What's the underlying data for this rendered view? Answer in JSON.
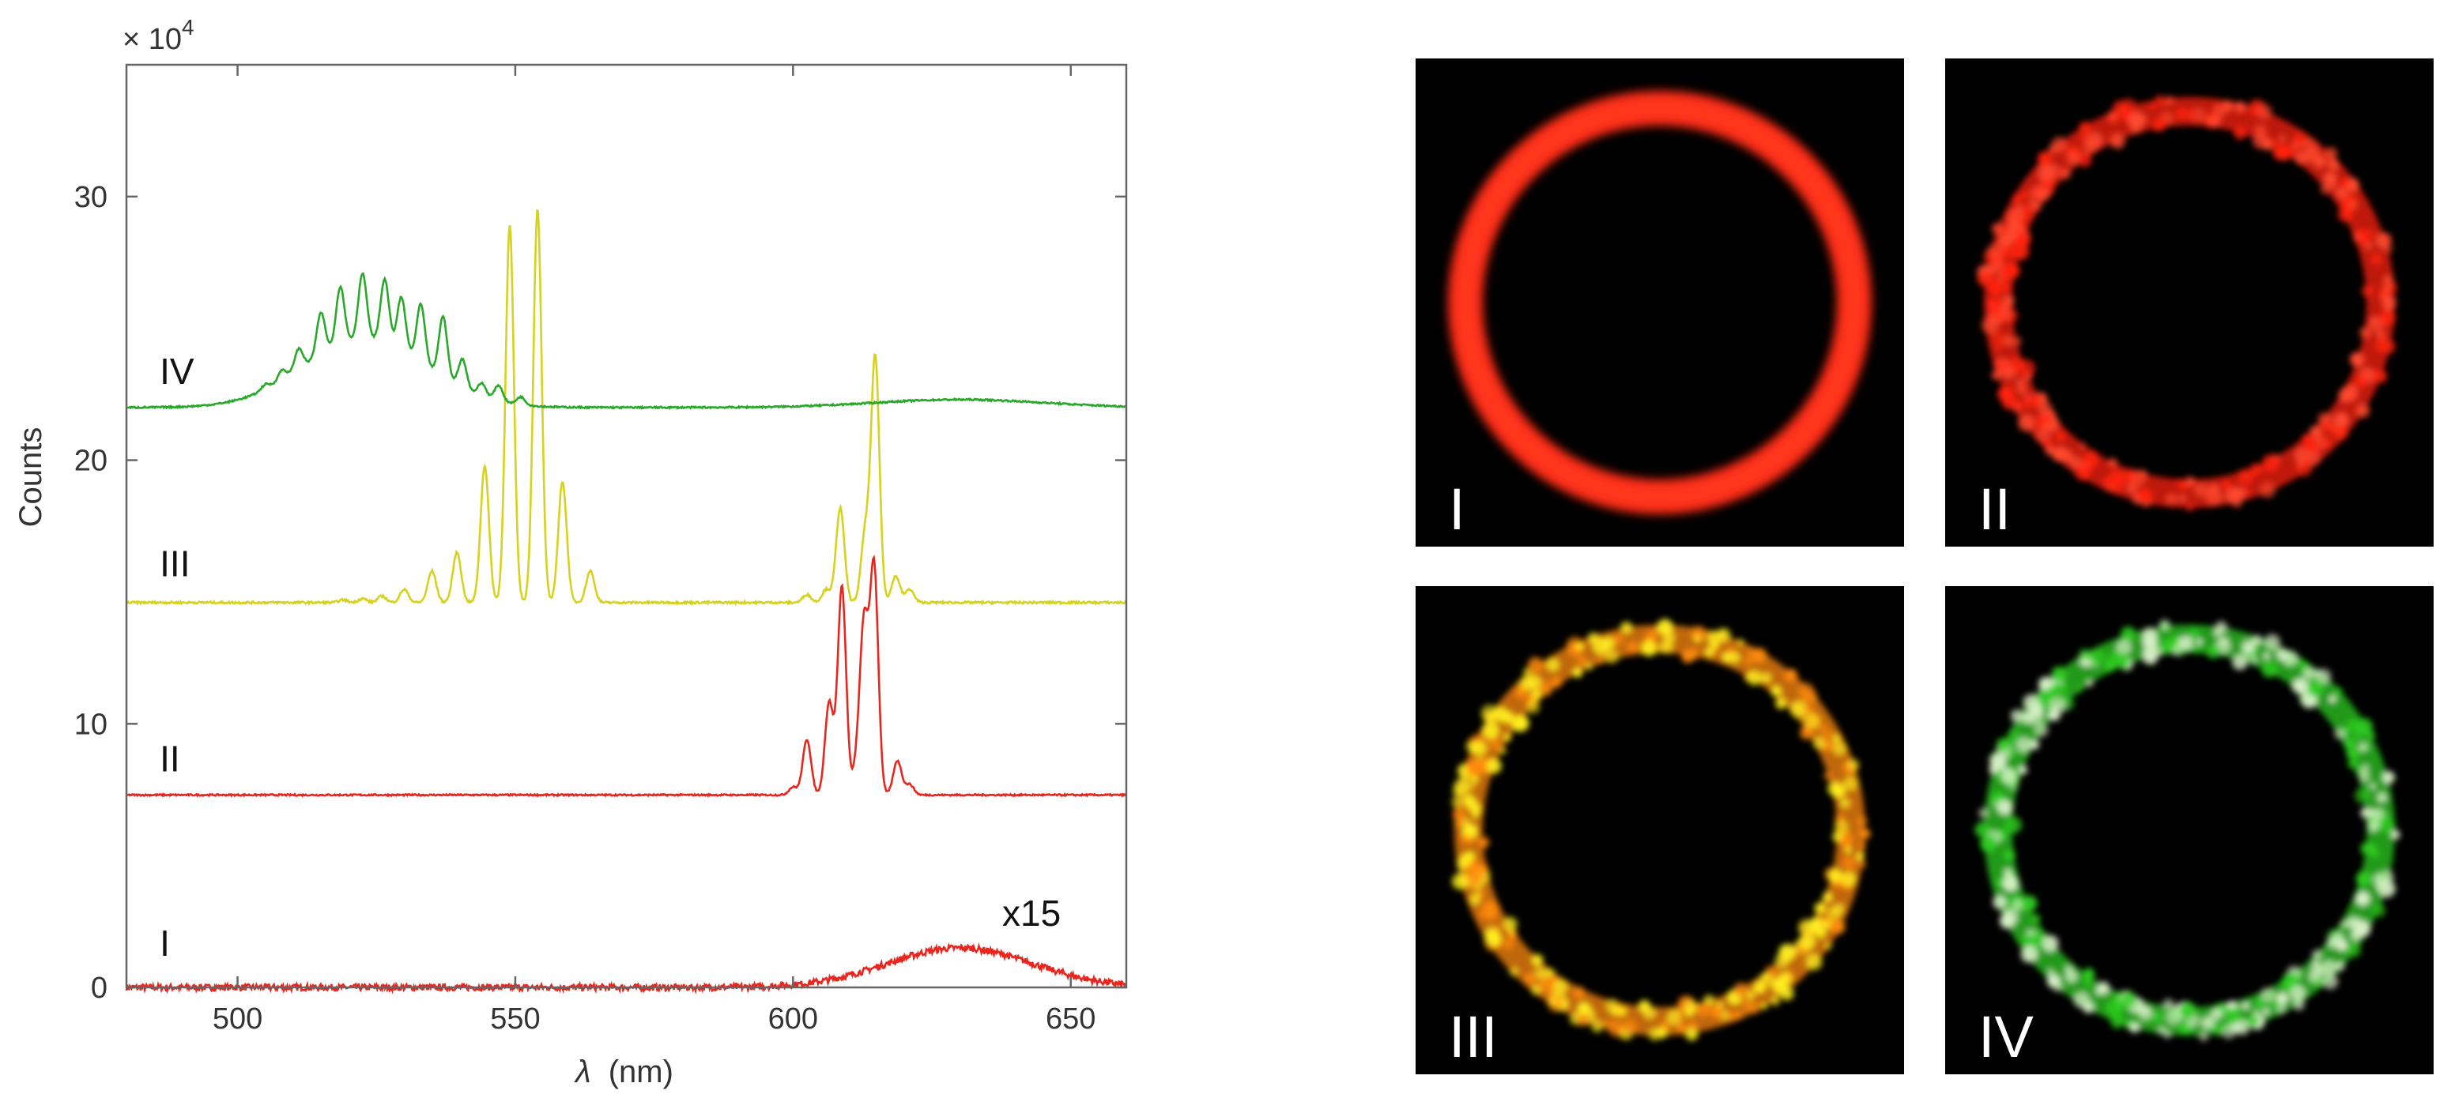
{
  "chart_data": {
    "type": "line",
    "title": "",
    "xlabel_symbol": "λ",
    "xlabel_unit": "(nm)",
    "ylabel": "Counts",
    "y_multiplier": "× 10",
    "y_multiplier_exp": "4",
    "xlim": [
      480,
      660
    ],
    "ylim": [
      0,
      35
    ],
    "xticks": [
      500,
      550,
      600,
      650
    ],
    "yticks": [
      0,
      10,
      20,
      30
    ],
    "grid": false,
    "annotation": "x15",
    "series": [
      {
        "label": "I",
        "color": "#e8261e",
        "baseline": 0.0,
        "noise": 0.12,
        "broad": [
          {
            "center": 630,
            "width": 13,
            "height": 1.5
          }
        ],
        "peaks": []
      },
      {
        "label": "II",
        "color": "#e8261e",
        "baseline": 7.3,
        "noise": 0.03,
        "broad": [],
        "peaks": [
          {
            "x": 600,
            "h": 0.3
          },
          {
            "x": 602.5,
            "h": 2.1
          },
          {
            "x": 606.5,
            "h": 3.5
          },
          {
            "x": 608.8,
            "h": 7.9
          },
          {
            "x": 611.5,
            "h": 1.0
          },
          {
            "x": 612.8,
            "h": 6.3
          },
          {
            "x": 614.6,
            "h": 8.6
          },
          {
            "x": 618.8,
            "h": 1.3
          },
          {
            "x": 621,
            "h": 0.4
          }
        ]
      },
      {
        "label": "III",
        "color": "#d6d21f",
        "baseline": 14.6,
        "noise": 0.04,
        "broad": [],
        "peaks": [
          {
            "x": 519,
            "h": 0.1
          },
          {
            "x": 522.5,
            "h": 0.15
          },
          {
            "x": 526,
            "h": 0.25
          },
          {
            "x": 530,
            "h": 0.5
          },
          {
            "x": 535,
            "h": 1.2
          },
          {
            "x": 539.5,
            "h": 1.9
          },
          {
            "x": 544.5,
            "h": 5.2
          },
          {
            "x": 549,
            "h": 14.3
          },
          {
            "x": 554,
            "h": 14.9
          },
          {
            "x": 558.5,
            "h": 4.6
          },
          {
            "x": 563.5,
            "h": 1.2
          },
          {
            "x": 602.5,
            "h": 0.3
          },
          {
            "x": 606,
            "h": 0.5
          },
          {
            "x": 608.5,
            "h": 3.6
          },
          {
            "x": 613,
            "h": 2.6
          },
          {
            "x": 614.8,
            "h": 9.3
          },
          {
            "x": 618.5,
            "h": 1.0
          },
          {
            "x": 621,
            "h": 0.5
          }
        ]
      },
      {
        "label": "IV",
        "color": "#2aa82a",
        "baseline": 22.0,
        "noise": 0.03,
        "broad": [
          {
            "center": 523,
            "width": 11,
            "height": 2.6
          },
          {
            "center": 630,
            "width": 15,
            "height": 0.3
          }
        ],
        "peaks": [
          {
            "x": 505,
            "h": 0.2
          },
          {
            "x": 508,
            "h": 0.4
          },
          {
            "x": 511,
            "h": 0.8
          },
          {
            "x": 515,
            "h": 1.6
          },
          {
            "x": 518.5,
            "h": 2.2
          },
          {
            "x": 522.5,
            "h": 2.5
          },
          {
            "x": 526.5,
            "h": 2.4
          },
          {
            "x": 529.5,
            "h": 2.0
          },
          {
            "x": 533,
            "h": 2.2
          },
          {
            "x": 537,
            "h": 2.3
          },
          {
            "x": 540.5,
            "h": 1.1
          },
          {
            "x": 544,
            "h": 0.5
          },
          {
            "x": 547,
            "h": 0.6
          },
          {
            "x": 551,
            "h": 0.3
          }
        ]
      }
    ]
  },
  "panels": [
    {
      "label": "I",
      "style": "ring-smooth",
      "color": "#ff2a14",
      "glow": "#ff3a22"
    },
    {
      "label": "II",
      "style": "ring-speckle",
      "color": "#ff2410",
      "spot": "#ff4a30"
    },
    {
      "label": "III",
      "style": "ring-speckle",
      "color": "#ff8a10",
      "spot": "#ffee20"
    },
    {
      "label": "IV",
      "style": "ring-speckle",
      "color": "#2ecc20",
      "spot": "#d8f0c8"
    }
  ]
}
